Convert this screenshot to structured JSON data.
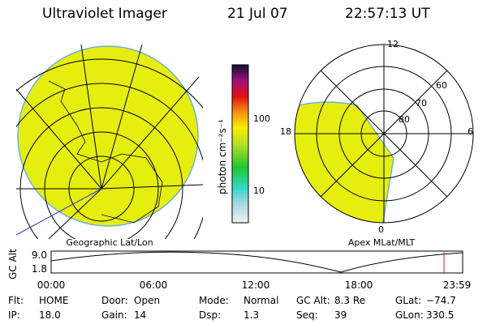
{
  "header": {
    "title": "Ultraviolet Imager",
    "date": "21 Jul 07",
    "time": "22:57:13 UT"
  },
  "geo_map": {
    "label": "Geographic Lat/Lon"
  },
  "colorbar": {
    "label": "photon cm⁻²s⁻¹",
    "ticks": [
      "100",
      "10"
    ]
  },
  "polar_map": {
    "label": "Apex MLat/MLT",
    "mlt_labels": [
      "12",
      "18",
      "6",
      "0"
    ],
    "lat_labels": [
      "60",
      "70",
      "80"
    ]
  },
  "altitude_plot": {
    "ylabel": "GC Alt",
    "yticks": [
      "9.0",
      "1.8"
    ],
    "xticks": [
      "00:00",
      "06:00",
      "12:00",
      "18:00",
      "23:59"
    ]
  },
  "status": [
    [
      {
        "label": "Flt:",
        "value": "HOME"
      },
      {
        "label": "Door:",
        "value": "Open"
      },
      {
        "label": "Mode:",
        "value": "Normal"
      },
      {
        "label": "GC Alt:",
        "value": "8.3 Re"
      },
      {
        "label": "GLat:",
        "value": "−74.7"
      }
    ],
    [
      {
        "label": "IP:",
        "value": "18.0"
      },
      {
        "label": "Gain:",
        "value": "14"
      },
      {
        "label": "Dsp:",
        "value": "1.3"
      },
      {
        "label": "Seq:",
        "value": "39"
      },
      {
        "label": "GLon:",
        "value": "330.5"
      }
    ]
  ]
}
